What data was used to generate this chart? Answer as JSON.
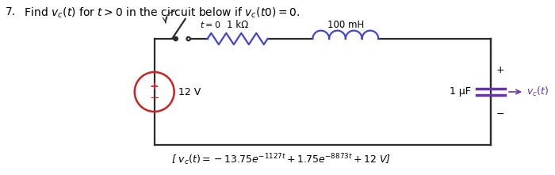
{
  "title_num": "7.",
  "title_text": "  Find $v_c(t)$ for $t > 0$ in the circuit below if $v_c(t0) = 0$.",
  "background_color": "#ffffff",
  "circuit_color": "#2c2c2c",
  "resistor_color": "#4444cc",
  "inductor_color": "#4444cc",
  "source_color": "#cc2222",
  "cap_color": "#6633aa",
  "t0_label": "$t = 0$",
  "r_label": "1 kΩ",
  "l_label": "100 mH",
  "c_label": "1 μF",
  "v_label": "12 V",
  "vc_label": "$v_c(t)$",
  "formula_left": "[ $v_c(t) = -13.75e^{-1127t} + 1.75e^{-8873t} + 12$ V]"
}
